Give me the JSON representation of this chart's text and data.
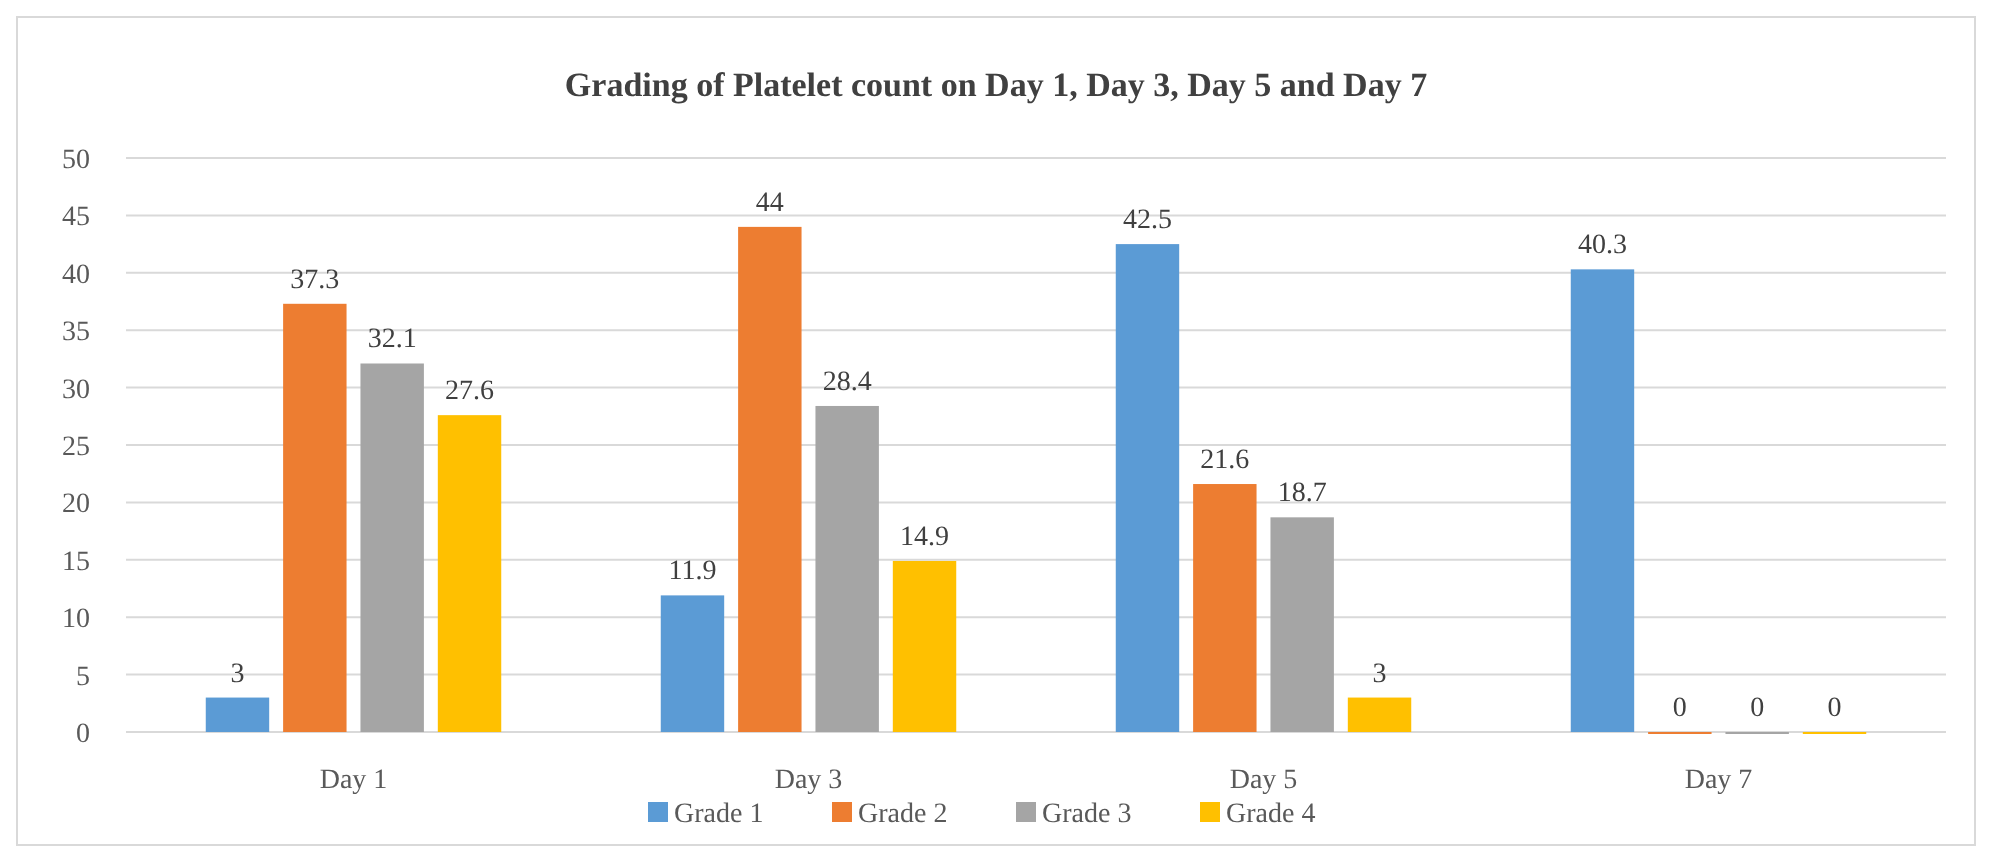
{
  "chart_data": {
    "type": "bar",
    "title": "Grading of Platelet count on Day 1, Day 3, Day 5 and Day 7",
    "categories": [
      "Day 1",
      "Day 3",
      "Day 5",
      "Day 7"
    ],
    "series": [
      {
        "name": "Grade 1",
        "color": "#5b9bd5",
        "values": [
          3,
          11.9,
          42.5,
          40.3
        ]
      },
      {
        "name": "Grade 2",
        "color": "#ed7d31",
        "values": [
          37.3,
          44,
          21.6,
          0
        ]
      },
      {
        "name": "Grade 3",
        "color": "#a5a5a5",
        "values": [
          32.1,
          28.4,
          18.7,
          0
        ]
      },
      {
        "name": "Grade 4",
        "color": "#ffc000",
        "values": [
          27.6,
          14.9,
          3,
          0
        ]
      }
    ],
    "ylim": [
      0,
      50
    ],
    "yticks": [
      0,
      5,
      10,
      15,
      20,
      25,
      30,
      35,
      40,
      45,
      50
    ],
    "grid": "y",
    "legend": "bottom",
    "data_labels": true
  }
}
